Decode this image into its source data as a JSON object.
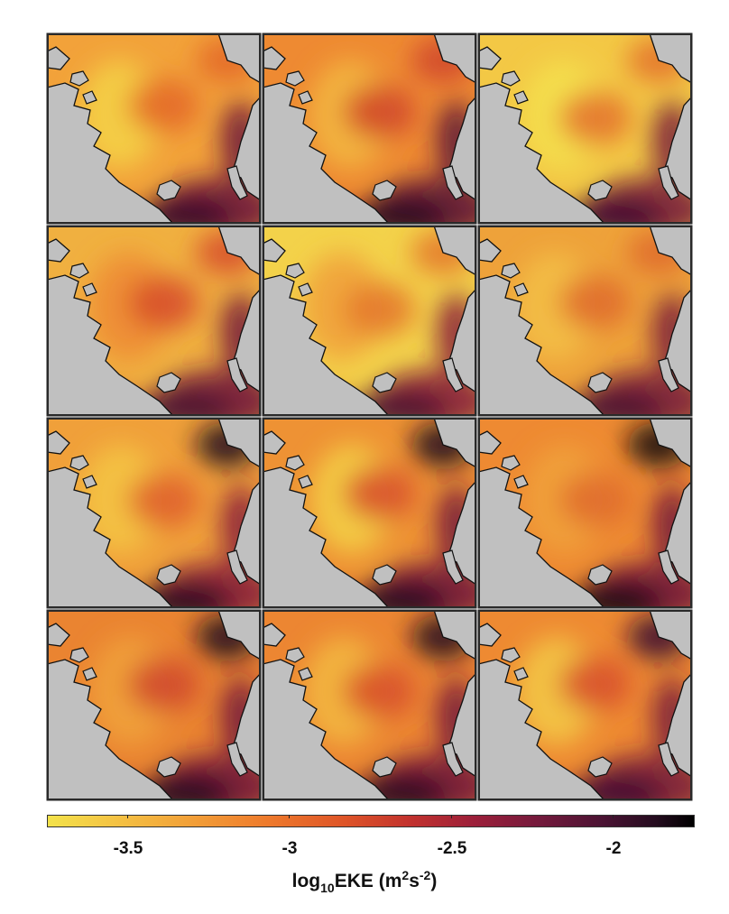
{
  "figure": {
    "panel_count": 12,
    "grid": {
      "rows": 4,
      "cols": 3
    },
    "land_color": "#c0c0c0",
    "frame_color": "#2a2a2a"
  },
  "colorbar": {
    "colormap": "hot (reversed, yellow to black)",
    "min": -3.75,
    "max": -1.8,
    "ticks": [
      {
        "value": -3.5,
        "label": "-3.5"
      },
      {
        "value": -3.0,
        "label": "-3"
      },
      {
        "value": -2.5,
        "label": "-2.5"
      },
      {
        "value": -2.0,
        "label": "-2"
      }
    ],
    "title_main": "log",
    "title_sub": "10",
    "title_var": "EKE (m",
    "title_sup1": "2",
    "title_mid": "s",
    "title_sup2": "-2",
    "title_end": ")"
  }
}
